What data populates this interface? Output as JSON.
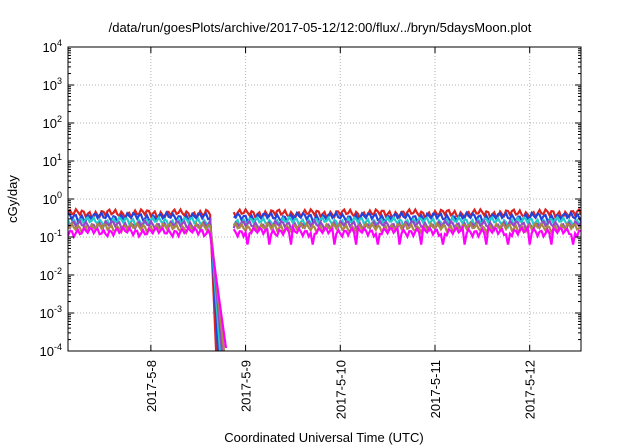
{
  "chart_data": {
    "type": "line",
    "title": "/data/run/goesPlots/archive/2017-05-12/12:00/flux/../bryn/5daysMoon.plot",
    "xlabel": "Coordinated Universal Time (UTC)",
    "ylabel": "cGy/day",
    "y_scale": "log",
    "ylim": [
      0.0001,
      10000
    ],
    "y_ticks": [
      {
        "value": 0.0001,
        "base": "10",
        "exp": "-4"
      },
      {
        "value": 0.001,
        "base": "10",
        "exp": "-3"
      },
      {
        "value": 0.01,
        "base": "10",
        "exp": "-2"
      },
      {
        "value": 0.1,
        "base": "10",
        "exp": "-1"
      },
      {
        "value": 1,
        "base": "10",
        "exp": "0"
      },
      {
        "value": 10,
        "base": "10",
        "exp": "1"
      },
      {
        "value": 100,
        "base": "10",
        "exp": "2"
      },
      {
        "value": 1000,
        "base": "10",
        "exp": "3"
      },
      {
        "value": 10000,
        "base": "10",
        "exp": "4"
      }
    ],
    "xlim": [
      "2017-05-07 03:00",
      "2017-05-12 13:00"
    ],
    "x_ticks": [
      {
        "value": "2017-05-08 00:00",
        "label": "2017-5-8"
      },
      {
        "value": "2017-05-09 00:00",
        "label": "2017-5-9"
      },
      {
        "value": "2017-05-10 00:00",
        "label": "2017-5-10"
      },
      {
        "value": "2017-05-11 00:00",
        "label": "2017-5-11"
      },
      {
        "value": "2017-05-12 00:00",
        "label": "2017-5-12"
      }
    ],
    "grid": true,
    "gap": {
      "start": "2017-05-08 15:20",
      "end": "2017-05-08 21:00"
    },
    "series": [
      {
        "color": "#dd2222",
        "level": 0.42
      },
      {
        "color": "#2244dd",
        "level": 0.34
      },
      {
        "color": "#22cccc",
        "level": 0.26
      },
      {
        "color": "#9944cc",
        "level": 0.21
      },
      {
        "color": "#aa8844",
        "level": 0.18
      },
      {
        "color": "#ff00ff",
        "level": 0.14
      }
    ]
  }
}
